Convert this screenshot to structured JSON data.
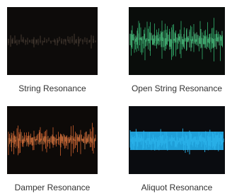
{
  "tiles": [
    {
      "caption": "String Resonance"
    },
    {
      "caption": "Open String Resonance"
    },
    {
      "caption": "Damper Resonance"
    },
    {
      "caption": "Aliquot Resonance"
    }
  ]
}
